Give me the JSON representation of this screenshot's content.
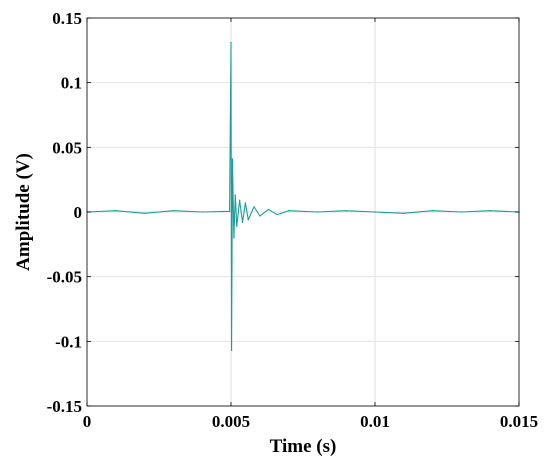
{
  "chart_data": {
    "type": "line",
    "xlabel": "Time (s)",
    "ylabel": "Amplitude (V)",
    "xlim": [
      0,
      0.015
    ],
    "ylim": [
      -0.15,
      0.15
    ],
    "x_ticks": [
      {
        "value": 0,
        "label": "0"
      },
      {
        "value": 0.005,
        "label": "0.005"
      },
      {
        "value": 0.01,
        "label": "0.01"
      },
      {
        "value": 0.015,
        "label": "0.015"
      }
    ],
    "y_ticks": [
      {
        "value": 0.15,
        "label": "0.15"
      },
      {
        "value": 0.1,
        "label": "0.1"
      },
      {
        "value": 0.05,
        "label": "0.05"
      },
      {
        "value": 0,
        "label": "0"
      },
      {
        "value": -0.05,
        "label": "-0.05"
      },
      {
        "value": -0.1,
        "label": "-0.1"
      },
      {
        "value": -0.15,
        "label": "-0.15"
      }
    ],
    "grid": true,
    "legend": "none",
    "series": [
      {
        "color": "#1a9e9a",
        "x": [
          0,
          0.001,
          0.002,
          0.003,
          0.004,
          0.00495,
          0.005,
          0.00502,
          0.00505,
          0.0051,
          0.00515,
          0.0052,
          0.0053,
          0.0054,
          0.0055,
          0.0056,
          0.0058,
          0.006,
          0.0063,
          0.0066,
          0.007,
          0.008,
          0.009,
          0.01,
          0.011,
          0.012,
          0.013,
          0.014,
          0.015
        ],
        "y": [
          0,
          0.001,
          -0.001,
          0.001,
          0,
          0.0005,
          0.131,
          -0.107,
          0.041,
          -0.02,
          0.013,
          -0.011,
          0.009,
          -0.008,
          0.007,
          -0.006,
          0.004,
          -0.003,
          0.002,
          -0.002,
          0.001,
          0,
          0.001,
          0,
          -0.001,
          0.001,
          0,
          0.001,
          0
        ]
      }
    ]
  }
}
